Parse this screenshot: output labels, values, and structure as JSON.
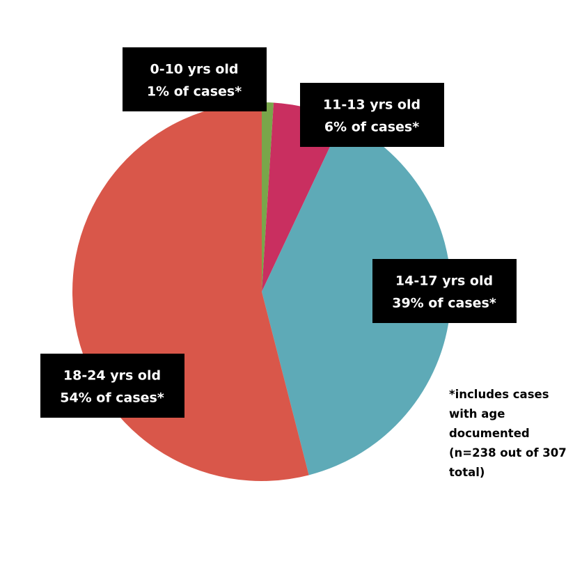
{
  "chart_data": {
    "type": "pie",
    "categories": [
      "0-10 yrs old",
      "11-13 yrs old",
      "14-17 yrs old",
      "18-24 yrs old"
    ],
    "values": [
      1,
      6,
      39,
      54
    ],
    "value_labels": [
      "1% of cases*",
      "6% of cases*",
      "39% of cases*",
      "54% of cases*"
    ],
    "colors": [
      "#79a64a",
      "#c92f60",
      "#5eaab7",
      "#d9574a"
    ],
    "note": "*includes cases with age documented (n=238 out of 307 total)"
  }
}
